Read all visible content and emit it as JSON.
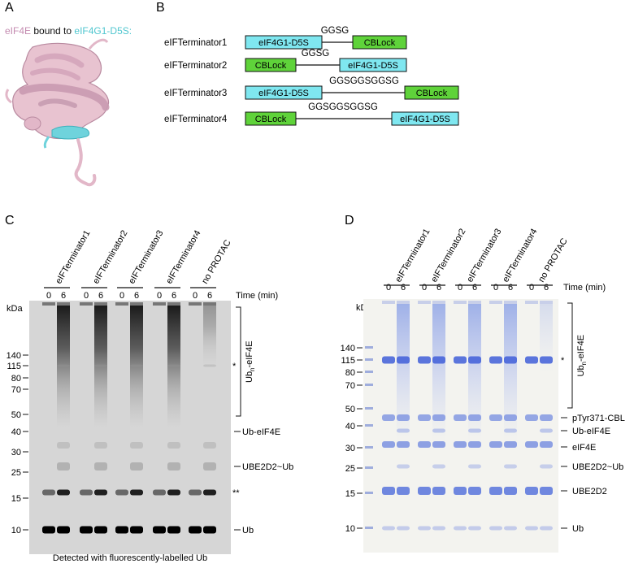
{
  "panels": {
    "A": "A",
    "B": "B",
    "C": "C",
    "D": "D"
  },
  "panel_a": {
    "title_part1": "eIF4E",
    "title_part2": " bound to ",
    "title_part3": "eIF4G1-D5S:",
    "colors": {
      "eif4e": "#c48bb0",
      "eif4g": "#4fc6cf",
      "protein_fill": "#e8c3d0",
      "helix_fill": "#6fd3dc"
    }
  },
  "panel_b": {
    "constructs": [
      {
        "name": "eIFTerminator1",
        "left": "eIF4G1-D5S",
        "linker": "GGSG",
        "right": "CBLock"
      },
      {
        "name": "eIFTerminator2",
        "left": "CBLock",
        "linker": "GGSG",
        "right": "eIF4G1-D5S"
      },
      {
        "name": "eIFTerminator3",
        "left": "eIF4G1-D5S",
        "linker": "GGSGGSGGSG",
        "right": "CBLock"
      },
      {
        "name": "eIFTerminator4",
        "left": "CBLock",
        "linker": "GGSGGSGGSG",
        "right": "eIF4G1-D5S"
      }
    ],
    "colors": {
      "eIF4G1-D5S": "#7fe7f0",
      "CBLock": "#5fd33a"
    }
  },
  "panel_c": {
    "lane_groups": [
      "eIFTerminator1",
      "eIFTerminator2",
      "eIFTerminator3",
      "eIFTerminator4",
      "no PROTAC"
    ],
    "timepoints": [
      "0",
      "6"
    ],
    "time_label": "Time (min)",
    "kda_label": "kDa",
    "markers": [
      "140",
      "115",
      "80",
      "70",
      "50",
      "40",
      "30",
      "25",
      "15",
      "10"
    ],
    "bands": [
      {
        "label": "Ub",
        "kind": "text"
      },
      {
        "label": "Ub-eIF4E",
        "kind": "text"
      },
      {
        "label": "UBE2D2~Ub",
        "kind": "text"
      },
      {
        "label": "**",
        "kind": "text"
      },
      {
        "label": "*",
        "kind": "text"
      }
    ],
    "ubn_label": "Ub",
    "ubn_sub": "n",
    "ubn_suffix": "-eIF4E",
    "caption": "Detected with fluorescently-labelled Ub"
  },
  "panel_d": {
    "lane_groups": [
      "eIFTerminator1",
      "eIFTerminator2",
      "eIFTerminator3",
      "eIFTerminator4",
      "no PROTAC"
    ],
    "timepoints": [
      "0",
      "6"
    ],
    "time_label": "Time (min)",
    "kda_label": "kDa",
    "markers": [
      "140",
      "115",
      "80",
      "70",
      "50",
      "40",
      "30",
      "25",
      "15",
      "10"
    ],
    "bands": [
      "pTyr371-CBL",
      "Ub-eIF4E",
      "eIF4E",
      "UBE2D2~Ub",
      "UBE2D2",
      "Ub",
      "*"
    ],
    "ubn_label": "Ub",
    "ubn_sub": "n",
    "ubn_suffix": "-eIF4E"
  }
}
